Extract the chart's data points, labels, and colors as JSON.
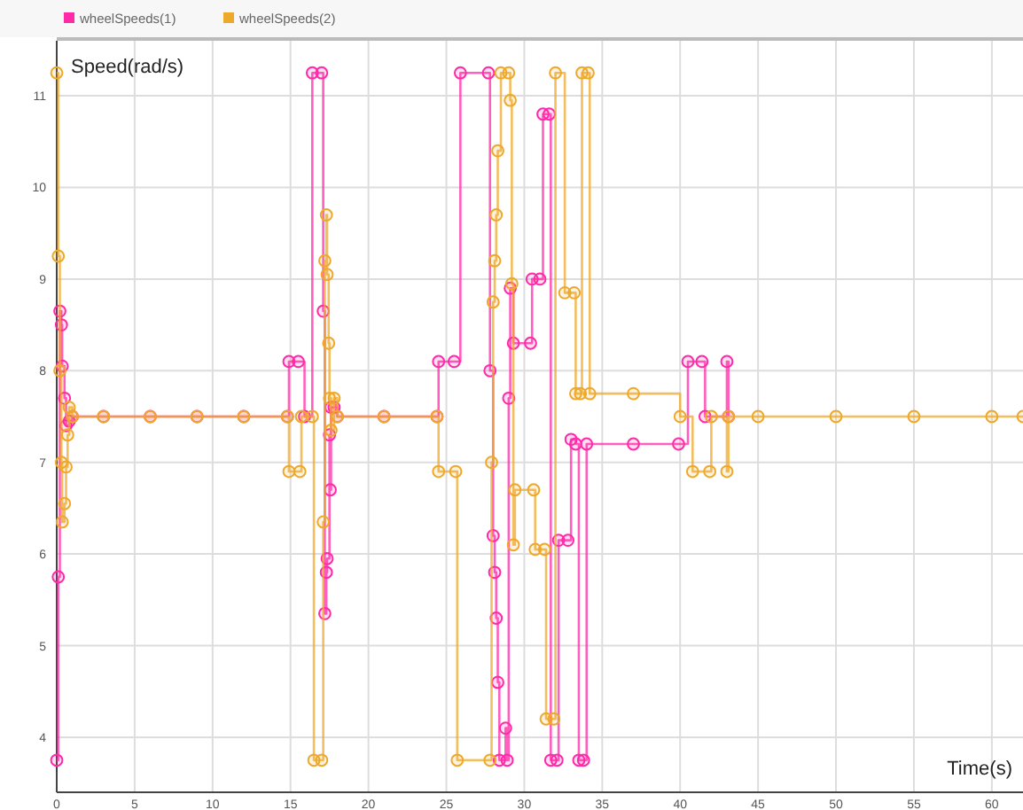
{
  "chart_data": {
    "type": "step",
    "xlabel": "Time(s)",
    "ylabel": "Speed(rad/s)",
    "xlim": [
      0,
      62
    ],
    "ylim": [
      3.4,
      11.6
    ],
    "xticks": [
      0,
      5,
      10,
      15,
      20,
      25,
      30,
      35,
      40,
      45,
      50,
      55,
      60
    ],
    "yticks": [
      4,
      5,
      6,
      7,
      8,
      9,
      10,
      11
    ],
    "grid": true,
    "legend": "top left",
    "marker": "circle",
    "line_style": "solid",
    "series": [
      {
        "name": "wheelSpeeds(1)",
        "color": "#ff2aa8",
        "x": [
          0,
          0.1,
          0.2,
          0.3,
          0.35,
          0.5,
          0.6,
          0.8,
          1,
          3,
          6,
          9,
          12,
          14.8,
          14.9,
          15.5,
          15.9,
          16.4,
          17,
          17.1,
          17.2,
          17.3,
          17.35,
          17.5,
          17.55,
          17.6,
          17.8,
          18,
          21,
          24.4,
          24.5,
          25.5,
          25.9,
          27.7,
          27.8,
          28,
          28.1,
          28.2,
          28.3,
          28.4,
          28.8,
          28.9,
          29,
          29.1,
          29.3,
          30.4,
          30.5,
          31,
          31.2,
          31.6,
          31.7,
          32.1,
          32.2,
          32.8,
          33,
          33.3,
          33.5,
          33.8,
          34,
          37,
          39.9,
          40.5,
          41.4,
          41.6,
          43,
          43.1
        ],
        "values": [
          3.75,
          5.75,
          8.65,
          8.5,
          8.05,
          7.7,
          7.4,
          7.45,
          7.5,
          7.5,
          7.5,
          7.5,
          7.5,
          7.5,
          8.1,
          8.1,
          7.5,
          11.25,
          11.25,
          8.65,
          5.35,
          5.8,
          5.95,
          7.3,
          6.7,
          7.6,
          7.6,
          7.5,
          7.5,
          7.5,
          8.1,
          8.1,
          11.25,
          11.25,
          8.0,
          6.2,
          5.8,
          5.3,
          4.6,
          3.75,
          4.1,
          3.75,
          7.7,
          8.9,
          8.3,
          8.3,
          9.0,
          9.0,
          10.8,
          10.8,
          3.75,
          3.75,
          6.15,
          6.15,
          7.25,
          7.2,
          3.75,
          3.75,
          7.2,
          7.2,
          7.2,
          8.1,
          8.1,
          7.5,
          8.1,
          7.5
        ]
      },
      {
        "name": "wheelSpeeds(2)",
        "color": "#eea82a",
        "x": [
          0,
          0.1,
          0.2,
          0.3,
          0.35,
          0.5,
          0.6,
          0.7,
          0.8,
          1,
          3,
          6,
          9,
          12,
          14.8,
          14.9,
          15.6,
          15.7,
          16.4,
          16.5,
          17,
          17.1,
          17.2,
          17.3,
          17.35,
          17.45,
          17.5,
          17.6,
          17.8,
          18,
          21,
          24.4,
          24.5,
          25.6,
          25.7,
          27.8,
          27.9,
          28,
          28.1,
          28.2,
          28.3,
          28.5,
          29,
          29.1,
          29.2,
          29.3,
          29.4,
          30.6,
          30.7,
          31.3,
          31.4,
          31.9,
          32,
          32.6,
          33.2,
          33.3,
          33.6,
          33.7,
          34.1,
          34.2,
          37,
          40,
          40.8,
          41.9,
          42,
          43,
          43.1,
          45,
          50,
          55,
          60,
          62
        ],
        "values": [
          11.25,
          9.25,
          8.0,
          7.0,
          6.35,
          6.55,
          6.95,
          7.3,
          7.6,
          7.5,
          7.5,
          7.5,
          7.5,
          7.5,
          7.5,
          6.9,
          6.9,
          7.5,
          7.5,
          3.75,
          3.75,
          6.35,
          9.2,
          9.7,
          9.05,
          8.3,
          7.7,
          7.35,
          7.7,
          7.5,
          7.5,
          7.5,
          6.9,
          6.9,
          3.75,
          3.75,
          7.0,
          8.75,
          9.2,
          9.7,
          10.4,
          11.25,
          11.25,
          10.95,
          8.95,
          6.1,
          6.7,
          6.7,
          6.05,
          6.05,
          4.2,
          4.2,
          11.25,
          8.85,
          8.85,
          7.75,
          7.75,
          11.25,
          11.25,
          7.75,
          7.75,
          7.5,
          6.9,
          6.9,
          7.5,
          6.9,
          7.5,
          7.5,
          7.5,
          7.5,
          7.5,
          7.5
        ]
      }
    ]
  }
}
